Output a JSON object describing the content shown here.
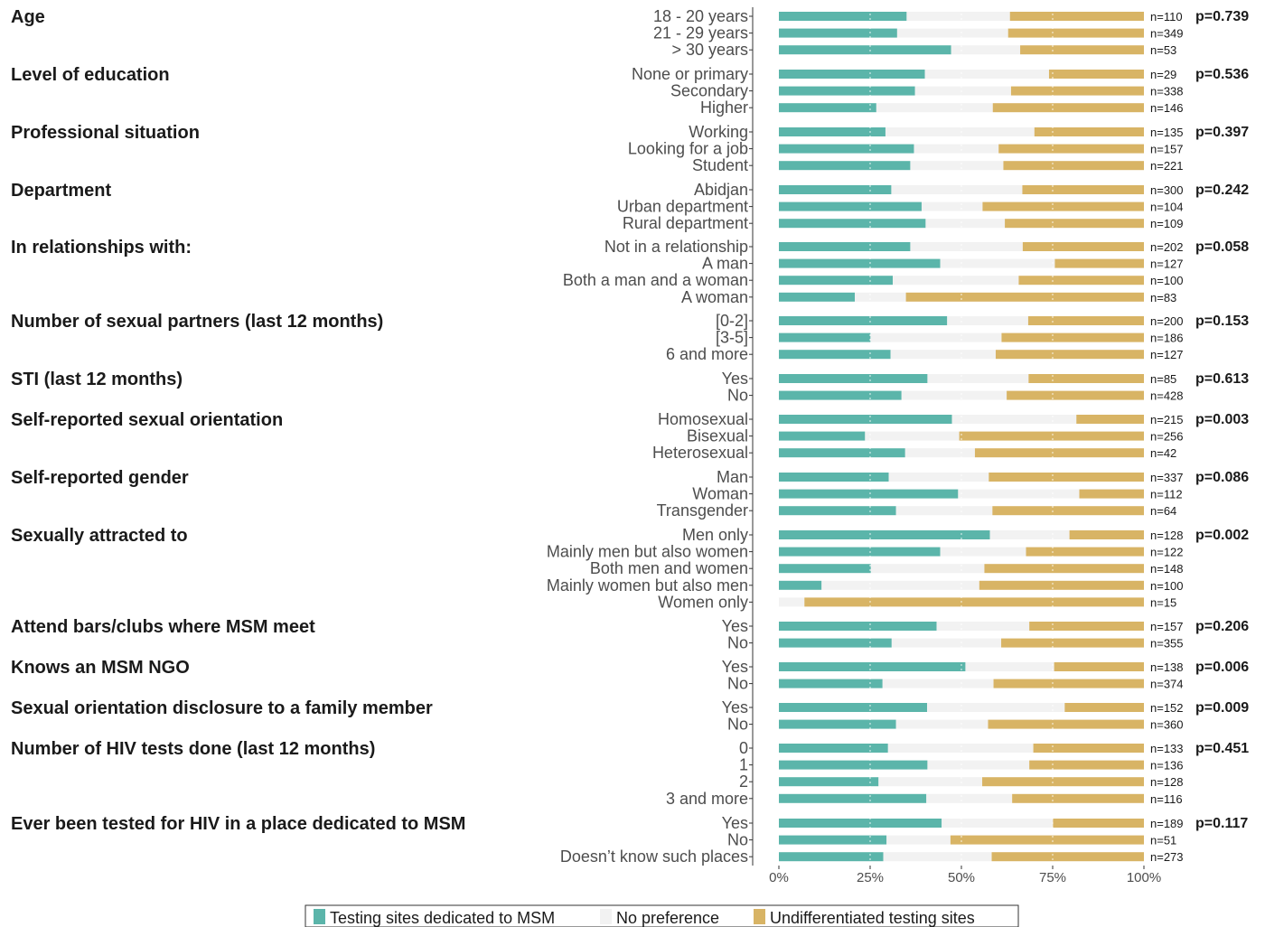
{
  "chart_data": {
    "type": "bar",
    "orientation": "horizontal-stacked-percent",
    "colors": {
      "dedicated": "#5bb5aa",
      "no_preference": "#f2f2f2",
      "undifferentiated": "#d8b465",
      "axis": "#333333",
      "tick_text": "#4d4d4d"
    },
    "series": [
      {
        "key": "dedicated",
        "name": "Testing sites dedicated to MSM"
      },
      {
        "key": "no_preference",
        "name": "No preference"
      },
      {
        "key": "undifferentiated",
        "name": "Undifferentiated testing sites"
      }
    ],
    "xlim": [
      0,
      100
    ],
    "x_ticks": [
      "0%",
      "25%",
      "50%",
      "75%",
      "100%"
    ],
    "legend_position": "bottom",
    "groups": [
      {
        "title": "Age",
        "p": "p=0.739",
        "rows": [
          {
            "label": "18 - 20 years",
            "n": "n=110",
            "dedicated": 35.0,
            "no_preference": 28.3,
            "undifferentiated": 36.7
          },
          {
            "label": "21 - 29 years",
            "n": "n=349",
            "dedicated": 32.4,
            "no_preference": 30.4,
            "undifferentiated": 37.2
          },
          {
            "label": "> 30 years",
            "n": "n=53",
            "dedicated": 47.2,
            "no_preference": 18.9,
            "undifferentiated": 33.9
          }
        ]
      },
      {
        "title": "Level of education",
        "p": "p=0.536",
        "rows": [
          {
            "label": "None or primary",
            "n": "n=29",
            "dedicated": 40.0,
            "no_preference": 34.0,
            "undifferentiated": 26.0
          },
          {
            "label": "Secondary",
            "n": "n=338",
            "dedicated": 37.3,
            "no_preference": 26.3,
            "undifferentiated": 36.4
          },
          {
            "label": "Higher",
            "n": "n=146",
            "dedicated": 26.7,
            "no_preference": 31.9,
            "undifferentiated": 41.4
          }
        ]
      },
      {
        "title": "Professional situation",
        "p": "p=0.397",
        "rows": [
          {
            "label": "Working",
            "n": "n=135",
            "dedicated": 29.2,
            "no_preference": 40.8,
            "undifferentiated": 30.0
          },
          {
            "label": "Looking for a job",
            "n": "n=157",
            "dedicated": 37.0,
            "no_preference": 23.2,
            "undifferentiated": 39.8
          },
          {
            "label": "Student",
            "n": "n=221",
            "dedicated": 36.0,
            "no_preference": 25.5,
            "undifferentiated": 38.5
          }
        ]
      },
      {
        "title": "Department",
        "p": "p=0.242",
        "rows": [
          {
            "label": "Abidjan",
            "n": "n=300",
            "dedicated": 30.8,
            "no_preference": 35.9,
            "undifferentiated": 33.3
          },
          {
            "label": "Urban department",
            "n": "n=104",
            "dedicated": 39.1,
            "no_preference": 16.7,
            "undifferentiated": 44.2
          },
          {
            "label": "Rural department",
            "n": "n=109",
            "dedicated": 40.2,
            "no_preference": 21.7,
            "undifferentiated": 38.1
          }
        ]
      },
      {
        "title": "In relationships with:",
        "p": "p=0.058",
        "rows": [
          {
            "label": "Not in a relationship",
            "n": "n=202",
            "dedicated": 36.0,
            "no_preference": 30.8,
            "undifferentiated": 33.2
          },
          {
            "label": "A man",
            "n": "n=127",
            "dedicated": 44.2,
            "no_preference": 31.4,
            "undifferentiated": 24.4
          },
          {
            "label": "Both a man and a woman",
            "n": "n=100",
            "dedicated": 31.2,
            "no_preference": 34.5,
            "undifferentiated": 34.3
          },
          {
            "label": "A woman",
            "n": "n=83",
            "dedicated": 20.8,
            "no_preference": 14.0,
            "undifferentiated": 65.2
          }
        ]
      },
      {
        "title": "Number of sexual partners (last 12 months)",
        "p": "p=0.153",
        "rows": [
          {
            "label": "[0-2]",
            "n": "n=200",
            "dedicated": 46.1,
            "no_preference": 22.2,
            "undifferentiated": 31.7
          },
          {
            "label": "[3-5]",
            "n": "n=186",
            "dedicated": 25.1,
            "no_preference": 35.9,
            "undifferentiated": 39.0
          },
          {
            "label": "6 and more",
            "n": "n=127",
            "dedicated": 30.6,
            "no_preference": 28.8,
            "undifferentiated": 40.6
          }
        ]
      },
      {
        "title": "STI (last 12 months)",
        "p": "p=0.613",
        "rows": [
          {
            "label": "Yes",
            "n": "n=85",
            "dedicated": 40.7,
            "no_preference": 27.7,
            "undifferentiated": 31.6
          },
          {
            "label": "No",
            "n": "n=428",
            "dedicated": 33.6,
            "no_preference": 28.8,
            "undifferentiated": 37.6
          }
        ]
      },
      {
        "title": "Self-reported sexual orientation",
        "p": "p=0.003",
        "rows": [
          {
            "label": "Homosexual",
            "n": "n=215",
            "dedicated": 47.4,
            "no_preference": 34.1,
            "undifferentiated": 18.5
          },
          {
            "label": "Bisexual",
            "n": "n=256",
            "dedicated": 23.6,
            "no_preference": 25.8,
            "undifferentiated": 50.6
          },
          {
            "label": "Heterosexual",
            "n": "n=42",
            "dedicated": 34.6,
            "no_preference": 19.1,
            "undifferentiated": 46.3
          }
        ]
      },
      {
        "title": "Self-reported gender",
        "p": "p=0.086",
        "rows": [
          {
            "label": "Man",
            "n": "n=337",
            "dedicated": 30.1,
            "no_preference": 27.4,
            "undifferentiated": 42.5
          },
          {
            "label": "Woman",
            "n": "n=112",
            "dedicated": 49.1,
            "no_preference": 33.2,
            "undifferentiated": 17.7
          },
          {
            "label": "Transgender",
            "n": "n=64",
            "dedicated": 32.1,
            "no_preference": 26.4,
            "undifferentiated": 41.5
          }
        ]
      },
      {
        "title": "Sexually attracted to",
        "p": "p=0.002",
        "rows": [
          {
            "label": "Men only",
            "n": "n=128",
            "dedicated": 57.8,
            "no_preference": 21.8,
            "undifferentiated": 20.4
          },
          {
            "label": "Mainly men but also women",
            "n": "n=122",
            "dedicated": 44.2,
            "no_preference": 23.5,
            "undifferentiated": 32.3
          },
          {
            "label": "Both men and women",
            "n": "n=148",
            "dedicated": 25.2,
            "no_preference": 31.1,
            "undifferentiated": 43.7
          },
          {
            "label": "Mainly women but also men",
            "n": "n=100",
            "dedicated": 11.7,
            "no_preference": 43.2,
            "undifferentiated": 45.1
          },
          {
            "label": "Women only",
            "n": "n=15",
            "dedicated": 0,
            "no_preference": 7.0,
            "undifferentiated": 93.0
          }
        ]
      },
      {
        "title": "Attend bars/clubs where MSM meet",
        "p": "p=0.206",
        "rows": [
          {
            "label": "Yes",
            "n": "n=157",
            "dedicated": 43.2,
            "no_preference": 25.4,
            "undifferentiated": 31.4
          },
          {
            "label": "No",
            "n": "n=355",
            "dedicated": 30.9,
            "no_preference": 30.0,
            "undifferentiated": 39.1
          }
        ]
      },
      {
        "title": "Knows an MSM NGO",
        "p": "p=0.006",
        "rows": [
          {
            "label": "Yes",
            "n": "n=138",
            "dedicated": 51.1,
            "no_preference": 24.3,
            "undifferentiated": 24.6
          },
          {
            "label": "No",
            "n": "n=374",
            "dedicated": 28.4,
            "no_preference": 30.4,
            "undifferentiated": 41.2
          }
        ]
      },
      {
        "title": "Sexual orientation disclosure to a family member",
        "p": "p=0.009",
        "rows": [
          {
            "label": "Yes",
            "n": "n=152",
            "dedicated": 40.6,
            "no_preference": 37.7,
            "undifferentiated": 21.7
          },
          {
            "label": "No",
            "n": "n=360",
            "dedicated": 32.1,
            "no_preference": 25.2,
            "undifferentiated": 42.7
          }
        ]
      },
      {
        "title": "Number of HIV tests done (last 12 months)",
        "p": "p=0.451",
        "rows": [
          {
            "label": "0",
            "n": "n=133",
            "dedicated": 29.9,
            "no_preference": 39.8,
            "undifferentiated": 30.3
          },
          {
            "label": "1",
            "n": "n=136",
            "dedicated": 40.7,
            "no_preference": 27.9,
            "undifferentiated": 31.4
          },
          {
            "label": "2",
            "n": "n=128",
            "dedicated": 27.3,
            "no_preference": 28.4,
            "undifferentiated": 44.3
          },
          {
            "label": "3 and more",
            "n": "n=116",
            "dedicated": 40.4,
            "no_preference": 23.5,
            "undifferentiated": 36.1
          }
        ]
      },
      {
        "title": "Ever been tested for HIV in a place dedicated to MSM",
        "p": "p=0.117",
        "rows": [
          {
            "label": "Yes",
            "n": "n=189",
            "dedicated": 44.6,
            "no_preference": 30.5,
            "undifferentiated": 24.9
          },
          {
            "label": "No",
            "n": "n=51",
            "dedicated": 29.5,
            "no_preference": 17.5,
            "undifferentiated": 53.0
          },
          {
            "label": "Doesn’t know such places",
            "n": "n=273",
            "dedicated": 28.6,
            "no_preference": 29.7,
            "undifferentiated": 41.7
          }
        ]
      }
    ]
  }
}
